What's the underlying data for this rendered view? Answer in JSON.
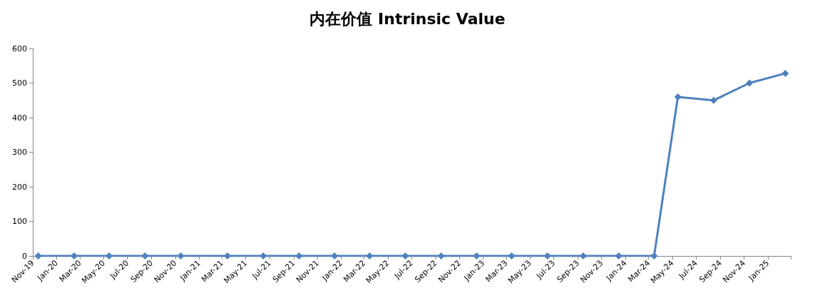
{
  "chart_data": {
    "type": "line",
    "title": "内在价值 Intrinsic Value",
    "x": [
      "2019-11-15",
      "2020-02-15",
      "2020-05-15",
      "2020-08-15",
      "2020-11-15",
      "2021-03-15",
      "2021-06-15",
      "2021-09-15",
      "2021-12-15",
      "2022-03-15",
      "2022-06-15",
      "2022-09-15",
      "2022-12-15",
      "2023-03-15",
      "2023-06-15",
      "2023-09-15",
      "2023-12-15",
      "2024-03-15",
      "2024-05-15",
      "2024-08-15",
      "2024-11-15",
      "2025-02-15"
    ],
    "series": [
      {
        "color": "#4f81bd",
        "values": [
          0,
          0,
          0,
          0,
          0,
          0,
          0,
          0,
          0,
          0,
          0,
          0,
          0,
          0,
          0,
          0,
          0,
          0,
          460,
          450,
          500,
          528
        ]
      }
    ],
    "xlim": [
      "2019-11-01",
      "2025-03-01"
    ],
    "xticks": [
      {
        "value": "2019-11",
        "label": "Nov-19"
      },
      {
        "value": "2020-01",
        "label": "Jan-20"
      },
      {
        "value": "2020-03",
        "label": "Mar-20"
      },
      {
        "value": "2020-05",
        "label": "May-20"
      },
      {
        "value": "2020-07",
        "label": "Jul-20"
      },
      {
        "value": "2020-09",
        "label": "Sep-20"
      },
      {
        "value": "2020-11",
        "label": "Nov-20"
      },
      {
        "value": "2021-01",
        "label": "Jan-21"
      },
      {
        "value": "2021-03",
        "label": "Mar-21"
      },
      {
        "value": "2021-05",
        "label": "May-21"
      },
      {
        "value": "2021-07",
        "label": "Jul-21"
      },
      {
        "value": "2021-09",
        "label": "Sep-21"
      },
      {
        "value": "2021-11",
        "label": "Nov-21"
      },
      {
        "value": "2022-01",
        "label": "Jan-22"
      },
      {
        "value": "2022-03",
        "label": "Mar-22"
      },
      {
        "value": "2022-05",
        "label": "May-22"
      },
      {
        "value": "2022-07",
        "label": "Jul-22"
      },
      {
        "value": "2022-09",
        "label": "Sep-22"
      },
      {
        "value": "2022-11",
        "label": "Nov-22"
      },
      {
        "value": "2023-01",
        "label": "Jan-23"
      },
      {
        "value": "2023-03",
        "label": "Mar-23"
      },
      {
        "value": "2023-05",
        "label": "May-23"
      },
      {
        "value": "2023-07",
        "label": "Jul-23"
      },
      {
        "value": "2023-09",
        "label": "Sep-23"
      },
      {
        "value": "2023-11",
        "label": "Nov-23"
      },
      {
        "value": "2024-01",
        "label": "Jan-24"
      },
      {
        "value": "2024-03",
        "label": "Mar-24"
      },
      {
        "value": "2024-05",
        "label": "May-24"
      },
      {
        "value": "2024-07",
        "label": "Jul-24"
      },
      {
        "value": "2024-09",
        "label": "Sep-24"
      },
      {
        "value": "2024-11",
        "label": "Nov-24"
      },
      {
        "value": "2025-01",
        "label": "Jan-25"
      },
      {
        "value": "2025-03",
        "label": null
      }
    ],
    "ylim": [
      0,
      600
    ],
    "yticks": [
      0,
      100,
      200,
      300,
      400,
      500,
      600
    ],
    "grid": false,
    "marker": "diamond",
    "line_style": "solid"
  }
}
